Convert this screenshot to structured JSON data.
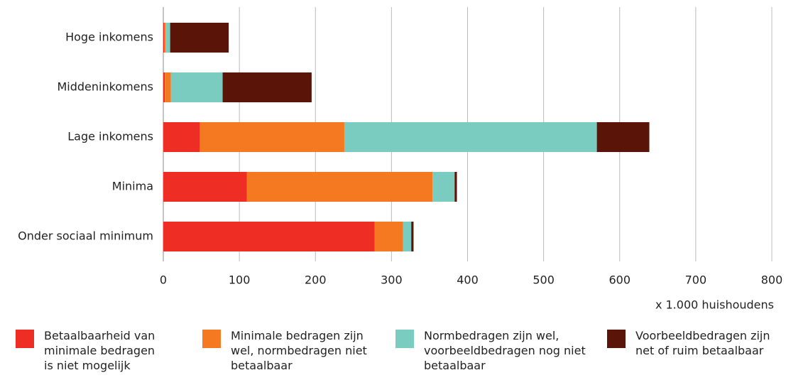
{
  "chart_data": {
    "type": "stacked-bar-horizontal",
    "categories": [
      "Hoge inkomens",
      "Middeninkomens",
      "Lage inkomens",
      "Minima",
      "Onder sociaal minimum"
    ],
    "series": [
      {
        "name": "Betaalbaarheid van minimale bedragen is niet mogelijk",
        "color": "#ee2d24",
        "values": [
          1,
          2,
          48,
          110,
          278
        ]
      },
      {
        "name": "Minimale bedragen zijn wel, normbedragen niet betaalbaar",
        "color": "#f47920",
        "values": [
          2,
          8,
          190,
          244,
          37
        ]
      },
      {
        "name": "Normbedragen zijn wel, voorbeeldbedragen nog niet betaalbaar",
        "color": "#7accc0",
        "values": [
          6,
          68,
          332,
          29,
          11
        ]
      },
      {
        "name": "Voorbeeldbedragen zijn net of ruim betaalbaar",
        "color": "#5a1508",
        "values": [
          77,
          117,
          69,
          3,
          3
        ]
      }
    ],
    "x_label": "x 1.000 huishoudens",
    "xlim": [
      0,
      800
    ],
    "xticks": [
      0,
      100,
      200,
      300,
      400,
      500,
      600,
      700,
      800
    ],
    "grid": true
  }
}
